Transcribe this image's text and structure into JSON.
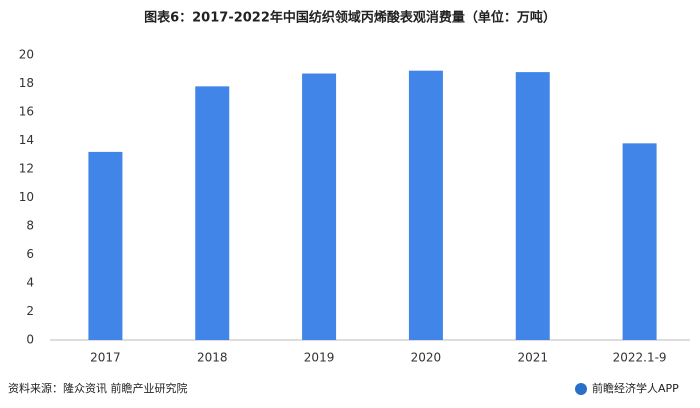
{
  "chart_data": {
    "type": "bar",
    "title": "图表6：2017-2022年中国纺织领域丙烯酸表观消费量（单位：万吨）",
    "categories": [
      "2017",
      "2018",
      "2019",
      "2020",
      "2021",
      "2022.1-9"
    ],
    "values": [
      13.2,
      17.8,
      18.7,
      18.9,
      18.8,
      13.8
    ],
    "color": "#4285e8",
    "ylim": [
      0,
      20
    ],
    "yticks": [
      0,
      2,
      4,
      6,
      8,
      10,
      12,
      14,
      16,
      18,
      20
    ],
    "grid": false
  },
  "source": "资料来源：隆众资讯 前瞻产业研究院",
  "brand": "前瞻经济学人APP"
}
